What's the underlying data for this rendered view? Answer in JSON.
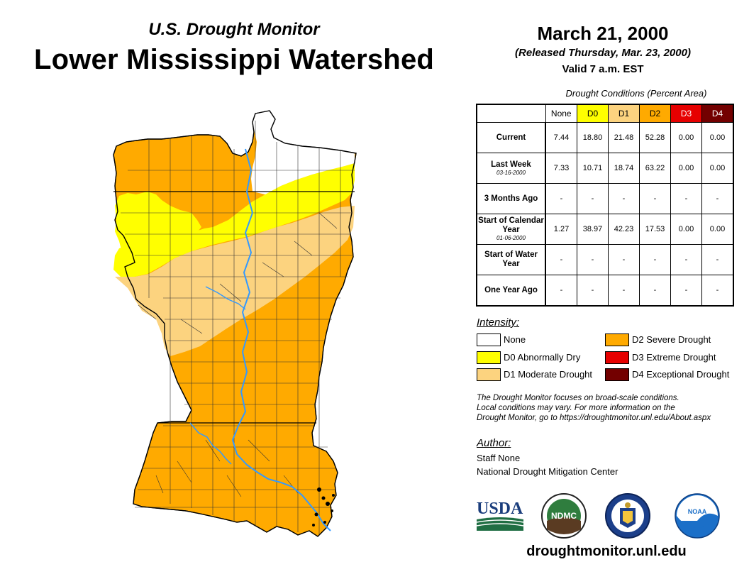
{
  "header": {
    "subtitle": "U.S. Drought Monitor",
    "title": "Lower Mississippi Watershed"
  },
  "release": {
    "date": "March 21, 2000",
    "released": "(Released Thursday, Mar. 23, 2000)",
    "valid": "Valid 7 a.m. EST"
  },
  "table": {
    "caption": "Drought Conditions (Percent Area)",
    "columns": [
      "None",
      "D0",
      "D1",
      "D2",
      "D3",
      "D4"
    ],
    "column_colors": [
      "#ffffff",
      "#ffff00",
      "#fcd37f",
      "#ffaa00",
      "#e60000",
      "#730000"
    ],
    "rows": [
      {
        "label": "Current",
        "sub": "",
        "values": [
          "7.44",
          "18.80",
          "21.48",
          "52.28",
          "0.00",
          "0.00"
        ]
      },
      {
        "label": "Last Week",
        "sub": "03-16-2000",
        "values": [
          "7.33",
          "10.71",
          "18.74",
          "63.22",
          "0.00",
          "0.00"
        ]
      },
      {
        "label": "3 Months Ago",
        "sub": "",
        "values": [
          "-",
          "-",
          "-",
          "-",
          "-",
          "-"
        ]
      },
      {
        "label": "Start of Calendar Year",
        "sub": "01-06-2000",
        "values": [
          "1.27",
          "38.97",
          "42.23",
          "17.53",
          "0.00",
          "0.00"
        ]
      },
      {
        "label": "Start of Water Year",
        "sub": "",
        "values": [
          "-",
          "-",
          "-",
          "-",
          "-",
          "-"
        ]
      },
      {
        "label": "One Year Ago",
        "sub": "",
        "values": [
          "-",
          "-",
          "-",
          "-",
          "-",
          "-"
        ]
      }
    ]
  },
  "legend": {
    "title": "Intensity:",
    "items": [
      {
        "label": "None",
        "color": "#ffffff"
      },
      {
        "label": "D0 Abnormally Dry",
        "color": "#ffff00"
      },
      {
        "label": "D1 Moderate Drought",
        "color": "#fcd37f"
      },
      {
        "label": "D2 Severe Drought",
        "color": "#ffaa00"
      },
      {
        "label": "D3 Extreme Drought",
        "color": "#e60000"
      },
      {
        "label": "D4 Exceptional Drought",
        "color": "#730000"
      }
    ]
  },
  "note": {
    "line1": "The Drought Monitor focuses on broad-scale conditions.",
    "line2": "Local conditions may vary. For more information on the",
    "line3": "Drought Monitor, go to https://droughtmonitor.unl.edu/About.aspx"
  },
  "author": {
    "title": "Author:",
    "name": "Staff None",
    "org": "National Drought Mitigation Center"
  },
  "logos": {
    "usda": "USDA",
    "ndmc": "NDMC",
    "noaa": "NOAA"
  },
  "footer": {
    "website": "droughtmonitor.unl.edu"
  },
  "map": {
    "river_color": "#3399ff"
  }
}
